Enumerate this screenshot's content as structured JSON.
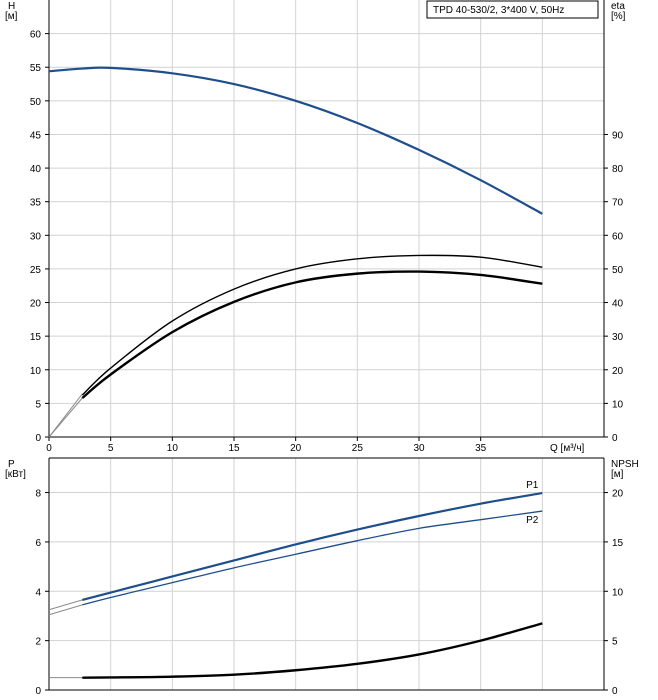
{
  "title_box": "TPD 40-530/2, 3*400 V, 50Hz",
  "colors": {
    "blue": "#1f4e8c",
    "black": "#000000",
    "grid": "#d2d2d2",
    "faint": "#8a8a8a"
  },
  "chart_data": [
    {
      "type": "line",
      "panel": "top",
      "left_axis": {
        "label": [
          "H",
          "[м]"
        ],
        "ticks": [
          0,
          5,
          10,
          15,
          20,
          25,
          30,
          35,
          40,
          45,
          50,
          55,
          60
        ],
        "range": [
          0,
          65
        ]
      },
      "right_axis": {
        "label": [
          "eta",
          "[%]"
        ],
        "ticks": [
          0,
          10,
          20,
          30,
          40,
          50,
          60,
          70,
          80,
          90
        ],
        "range": [
          0,
          130
        ]
      },
      "x_axis": {
        "label": "Q [м³/ч]",
        "ticks": [
          0,
          5,
          10,
          15,
          20,
          25,
          30,
          35
        ],
        "range": [
          0,
          45
        ]
      },
      "series": [
        {
          "axis": "left",
          "color": "blue",
          "width": 2.2,
          "x": [
            0,
            2.7,
            5,
            10,
            15,
            20,
            25,
            30,
            35,
            40
          ],
          "y": [
            54.4,
            54.8,
            54.9,
            54.1,
            52.5,
            50.0,
            46.7,
            42.7,
            38.2,
            33.2
          ]
        },
        {
          "axis": "right",
          "color": "black",
          "width": 1.4,
          "x": [
            2.7,
            5,
            10,
            15,
            20,
            25,
            30,
            35,
            40
          ],
          "y": [
            12.5,
            20.5,
            34.5,
            44.0,
            50.0,
            53.0,
            54.0,
            53.5,
            50.5
          ]
        },
        {
          "axis": "left",
          "color": "black",
          "width": 2.4,
          "x": [
            2.7,
            5,
            10,
            15,
            20,
            25,
            30,
            35,
            40
          ],
          "y": [
            5.8,
            9.3,
            15.6,
            20.1,
            23.0,
            24.3,
            24.6,
            24.1,
            22.8
          ]
        }
      ],
      "extensions": [
        {
          "axis": "left",
          "x": [
            0,
            2.7
          ],
          "y": [
            54.4,
            54.8
          ]
        },
        {
          "axis": "left",
          "x": [
            0,
            2.7
          ],
          "y": [
            0,
            6.4
          ]
        },
        {
          "axis": "left",
          "x": [
            0,
            2.7
          ],
          "y": [
            0,
            5.8
          ]
        }
      ]
    },
    {
      "type": "line",
      "panel": "bottom",
      "left_axis": {
        "label": [
          "P",
          "[кВт]"
        ],
        "ticks": [
          0,
          2,
          4,
          6,
          8
        ],
        "range": [
          0,
          9.4
        ]
      },
      "right_axis": {
        "label": [
          "NPSH",
          "[м]"
        ],
        "ticks": [
          0,
          5,
          10,
          15,
          20
        ],
        "range": [
          0,
          23.5
        ]
      },
      "x_axis": {
        "range": [
          0,
          45
        ]
      },
      "series": [
        {
          "name": "P1",
          "axis": "left",
          "color": "blue",
          "width": 2.2,
          "x": [
            2.7,
            5,
            10,
            15,
            20,
            25,
            30,
            35,
            40
          ],
          "y": [
            3.65,
            3.95,
            4.6,
            5.25,
            5.9,
            6.5,
            7.05,
            7.55,
            7.98
          ]
        },
        {
          "name": "P2",
          "axis": "left",
          "color": "blue",
          "width": 1.3,
          "x": [
            2.7,
            5,
            10,
            15,
            20,
            25,
            30,
            35,
            40
          ],
          "y": [
            3.45,
            3.75,
            4.35,
            4.95,
            5.5,
            6.05,
            6.55,
            6.9,
            7.25
          ]
        },
        {
          "axis": "right",
          "color": "black",
          "width": 2.4,
          "x": [
            2.7,
            5,
            10,
            15,
            20,
            25,
            30,
            35,
            40
          ],
          "y": [
            1.25,
            1.27,
            1.35,
            1.55,
            2.0,
            2.65,
            3.6,
            5.0,
            6.75
          ]
        }
      ],
      "extensions": [
        {
          "axis": "left",
          "x": [
            0,
            2.7
          ],
          "y": [
            3.25,
            3.65
          ]
        },
        {
          "axis": "left",
          "x": [
            0,
            2.7
          ],
          "y": [
            3.05,
            3.45
          ]
        },
        {
          "axis": "right",
          "x": [
            0,
            2.7
          ],
          "y": [
            1.25,
            1.25
          ]
        }
      ]
    }
  ]
}
